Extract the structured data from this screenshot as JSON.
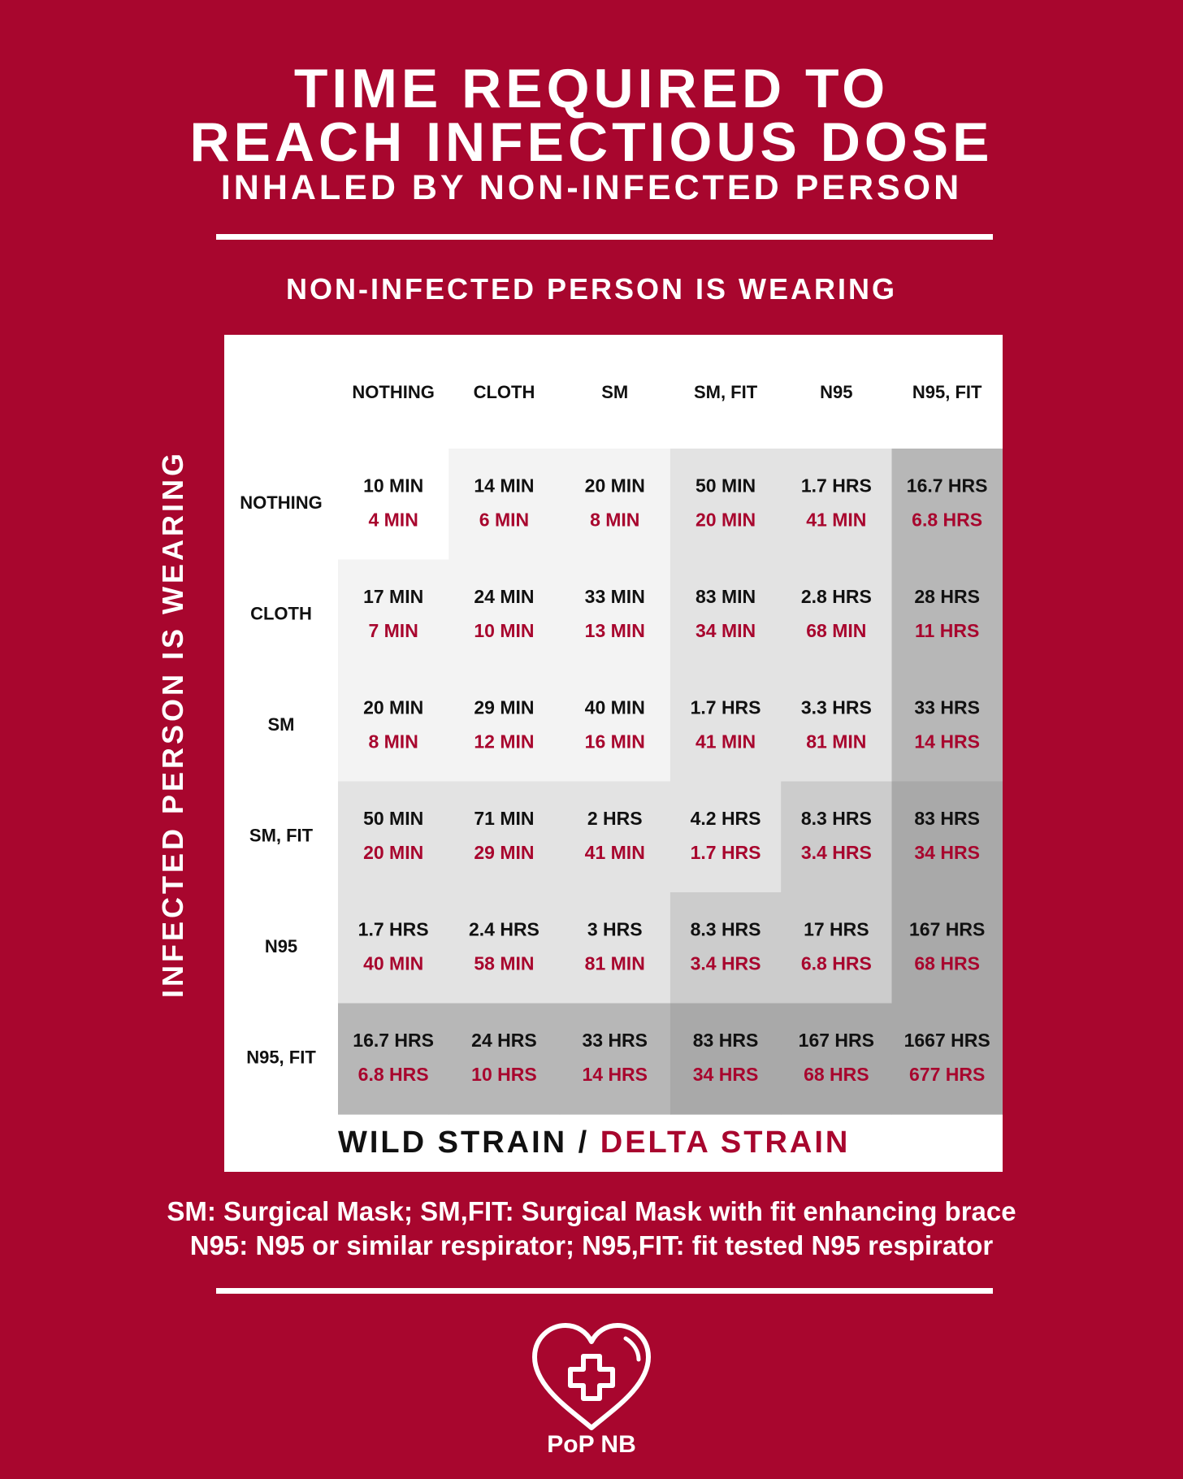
{
  "title": {
    "line1": "TIME REQUIRED TO",
    "line2": "REACH INFECTIOUS DOSE",
    "line3": "INHALED BY NON-INFECTED PERSON"
  },
  "column_heading": "NON-INFECTED PERSON IS WEARING",
  "row_heading": "INFECTED PERSON IS WEARING",
  "colors": {
    "background": "#a8062e",
    "wild_text": "#111111",
    "delta_text": "#a8062e",
    "shade_levels": [
      "#ffffff",
      "#f3f3f3",
      "#e3e3e3",
      "#cccccc",
      "#b7b7b7",
      "#a9a9a9"
    ]
  },
  "chart_data": {
    "type": "table",
    "columns": [
      "NOTHING",
      "CLOTH",
      "SM",
      "SM, FIT",
      "N95",
      "N95, FIT"
    ],
    "rows": [
      "NOTHING",
      "CLOTH",
      "SM",
      "SM, FIT",
      "N95",
      "N95, FIT"
    ],
    "series": [
      {
        "name": "WILD STRAIN",
        "values": [
          [
            "10 MIN",
            "14 MIN",
            "20 MIN",
            "50 MIN",
            "1.7 HRS",
            "16.7 HRS"
          ],
          [
            "17 MIN",
            "24 MIN",
            "33 MIN",
            "83 MIN",
            "2.8 HRS",
            "28 HRS"
          ],
          [
            "20 MIN",
            "29 MIN",
            "40 MIN",
            "1.7 HRS",
            "3.3 HRS",
            "33 HRS"
          ],
          [
            "50 MIN",
            "71 MIN",
            "2 HRS",
            "4.2 HRS",
            "8.3 HRS",
            "83 HRS"
          ],
          [
            "1.7 HRS",
            "2.4 HRS",
            "3 HRS",
            "8.3 HRS",
            "17 HRS",
            "167 HRS"
          ],
          [
            "16.7 HRS",
            "24 HRS",
            "33 HRS",
            "83 HRS",
            "167 HRS",
            "1667 HRS"
          ]
        ]
      },
      {
        "name": "DELTA STRAIN",
        "values": [
          [
            "4 MIN",
            "6 MIN",
            "8 MIN",
            "20 MIN",
            "41 MIN",
            "6.8 HRS"
          ],
          [
            "7 MIN",
            "10 MIN",
            "13 MIN",
            "34 MIN",
            "68 MIN",
            "11 HRS"
          ],
          [
            "8 MIN",
            "12 MIN",
            "16 MIN",
            "41 MIN",
            "81 MIN",
            "14 HRS"
          ],
          [
            "20 MIN",
            "29 MIN",
            "41 MIN",
            "1.7 HRS",
            "3.4 HRS",
            "34 HRS"
          ],
          [
            "40 MIN",
            "58 MIN",
            "81 MIN",
            "3.4 HRS",
            "6.8 HRS",
            "68 HRS"
          ],
          [
            "6.8 HRS",
            "10 HRS",
            "14 HRS",
            "34 HRS",
            "68 HRS",
            "677 HRS"
          ]
        ]
      }
    ],
    "shade": [
      [
        0,
        1,
        1,
        2,
        2,
        4
      ],
      [
        1,
        1,
        1,
        2,
        2,
        4
      ],
      [
        1,
        1,
        1,
        2,
        2,
        4
      ],
      [
        2,
        2,
        2,
        2,
        3,
        5
      ],
      [
        2,
        2,
        2,
        3,
        3,
        5
      ],
      [
        4,
        4,
        4,
        5,
        5,
        5
      ]
    ]
  },
  "legend": {
    "wild": "WILD STRAIN",
    "separator": "/",
    "delta": "DELTA STRAIN"
  },
  "footnotes": {
    "line1": "SM: Surgical Mask; SM,FIT: Surgical Mask with fit enhancing brace",
    "line2": "N95: N95 or similar respirator; N95,FIT: fit tested N95 respirator"
  },
  "logo": {
    "icon": "heart-cross-icon",
    "text": "PoP NB"
  }
}
